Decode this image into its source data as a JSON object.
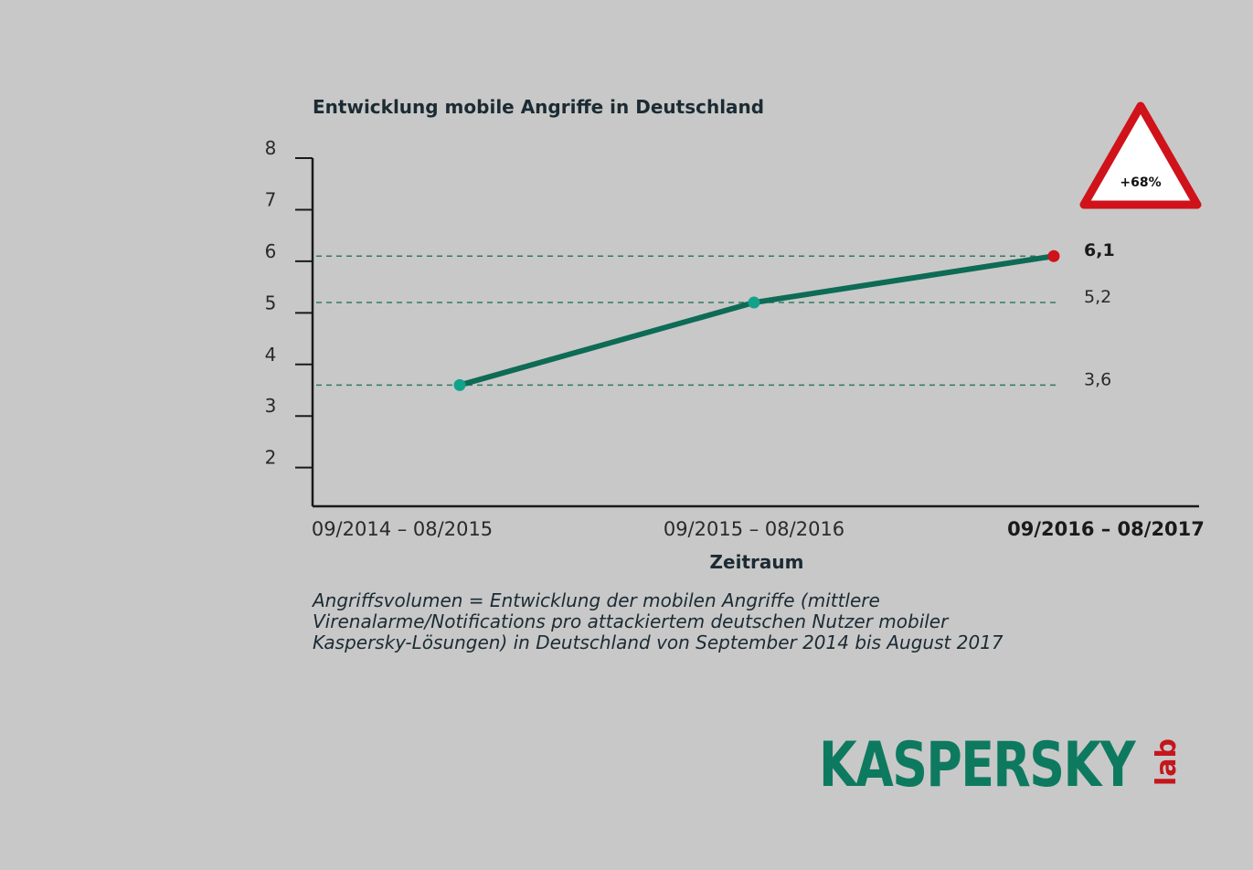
{
  "chart_data": {
    "type": "line",
    "title": "Entwicklung mobile Angriffe in Deutschland",
    "xlabel": "Zeitraum",
    "ylabel": "",
    "categories": [
      "09/2014 – 08/2015",
      "09/2015 – 08/2016",
      "09/2016 – 08/2017"
    ],
    "series": [
      {
        "values": [
          3.6,
          5.2,
          6.1
        ]
      }
    ],
    "data_labels": [
      "3,6",
      "5,2",
      "6,1"
    ],
    "y_ticks": [
      "2",
      "3",
      "4",
      "5",
      "6",
      "7",
      "8"
    ],
    "ylim": [
      1.25,
      8
    ],
    "grid": "dashed reference lines at data values",
    "colors": {
      "line": "#0d6b56",
      "point": "#12a28a",
      "highlight_point": "#d0121b",
      "reference": "#2f7a62"
    },
    "badge": "+68%",
    "note_lines": [
      "Angriffsvolumen = Entwicklung der mobilen Angriffe (mittlere",
      "Virenalarme/Notifications pro attackiertem deutschen Nutzer mobiler",
      "Kaspersky-Lösungen) in Deutschland von September 2014 bis August 2017"
    ]
  },
  "logo": {
    "text": "KASPERSKY",
    "suffix": "lab",
    "color": "#0d7a5f",
    "accent": "#c4161c"
  }
}
